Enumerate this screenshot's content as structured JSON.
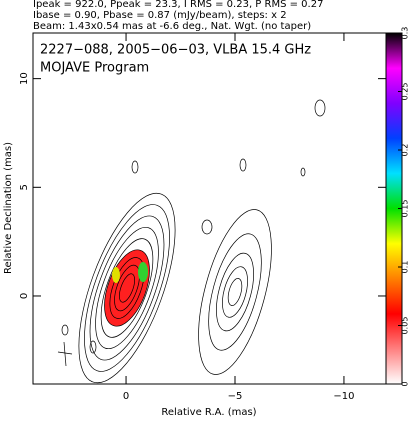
{
  "header": {
    "lines": [
      "Ipeak = 922.0, Ppeak = 23.3, I RMS = 0.23, P RMS = 0.27",
      "Ibase = 0.90, Pbase = 0.87 (mJy/beam), steps: x 2",
      "Beam: 1.43x0.54 mas at -6.6 deg., Nat. Wgt. (no taper)"
    ]
  },
  "chart_data": {
    "type": "contour",
    "title": "2227−088, 2005−06−03, VLBA 15.4 GHz",
    "subtitle": "MOJAVE Program",
    "x_label": "Relative R.A. (mas)",
    "y_label": "Relative Declination (mas)",
    "xlim": [
      4.27,
      -11.93
    ],
    "ylim": [
      -4.05,
      12.1
    ],
    "xticks": [
      0,
      {
        "value": -5,
        "label": "−5"
      },
      {
        "value": -10,
        "label": "−10"
      }
    ],
    "yticks": [
      0,
      5,
      10
    ],
    "colorbar": {
      "lim": [
        0,
        0.3
      ],
      "ticks": [
        0,
        0.05,
        0.1,
        0.15,
        0.2,
        0.25,
        0.3
      ],
      "colormap": [
        "#000000",
        "#ff00ff",
        "#8000ff",
        "#0040ff",
        "#00e0ff",
        "#00e000",
        "#ffff00",
        "#ff8000",
        "#ff0000",
        "#ff8080",
        "#ffffff"
      ]
    }
  }
}
